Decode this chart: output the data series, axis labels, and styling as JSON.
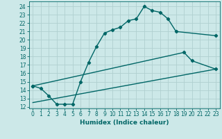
{
  "xlabel": "Humidex (Indice chaleur)",
  "bg_color": "#cce8e8",
  "grid_color": "#b0d0d0",
  "line_color": "#006666",
  "xlim": [
    -0.5,
    23.5
  ],
  "ylim": [
    11.8,
    24.6
  ],
  "yticks": [
    12,
    13,
    14,
    15,
    16,
    17,
    18,
    19,
    20,
    21,
    22,
    23,
    24
  ],
  "xticks": [
    0,
    1,
    2,
    3,
    4,
    5,
    6,
    7,
    8,
    9,
    10,
    11,
    12,
    13,
    14,
    15,
    16,
    17,
    18,
    19,
    20,
    21,
    22,
    23
  ],
  "curve1_x": [
    0,
    1,
    2,
    3,
    4,
    5,
    6,
    7,
    8,
    9,
    10,
    11,
    12,
    13,
    14,
    15,
    16,
    17,
    18,
    23
  ],
  "curve1_y": [
    14.5,
    14.2,
    13.3,
    12.3,
    12.3,
    12.3,
    15.0,
    17.3,
    19.2,
    20.8,
    21.2,
    21.5,
    22.3,
    22.5,
    24.0,
    23.5,
    23.3,
    22.5,
    21.0,
    20.5
  ],
  "curve2_x": [
    0,
    19,
    20,
    23
  ],
  "curve2_y": [
    14.5,
    18.5,
    17.5,
    16.5
  ],
  "curve3_x": [
    0,
    23
  ],
  "curve3_y": [
    12.5,
    16.5
  ],
  "tick_fontsize": 5.5,
  "xlabel_fontsize": 6.5
}
